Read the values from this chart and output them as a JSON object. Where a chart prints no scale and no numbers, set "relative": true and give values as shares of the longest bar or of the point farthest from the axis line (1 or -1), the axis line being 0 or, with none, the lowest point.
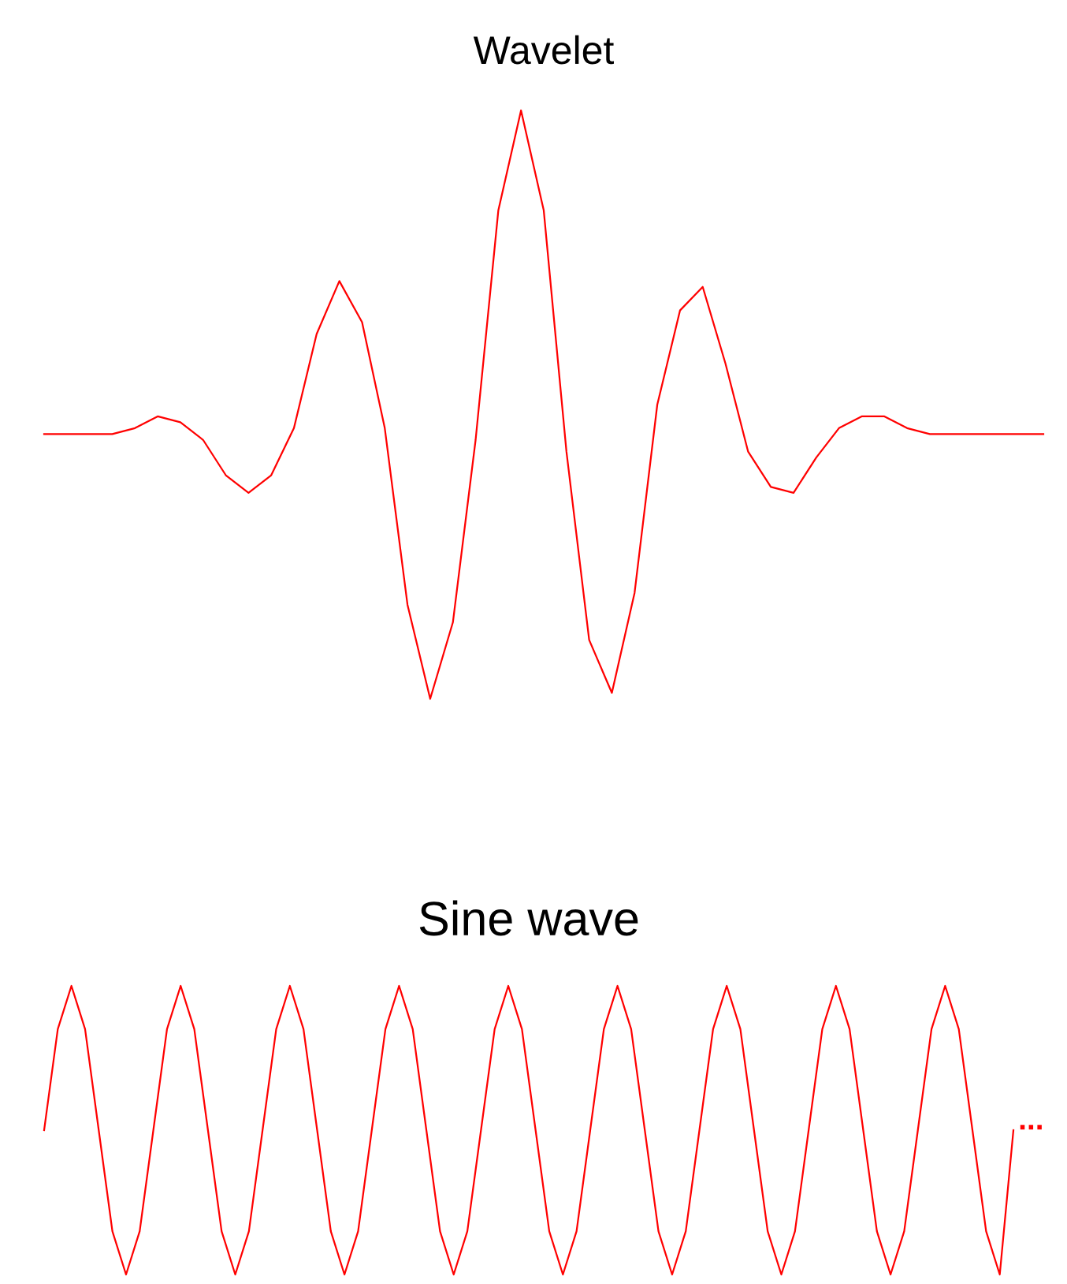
{
  "chart_data": [
    {
      "type": "line",
      "title": "Wavelet",
      "relative": true,
      "categories": [
        null,
        null,
        null,
        null,
        null,
        null,
        null,
        null,
        null,
        null,
        null,
        null,
        null,
        null,
        null,
        null,
        null,
        null,
        null,
        null,
        null,
        null,
        null,
        null,
        null,
        null,
        null,
        null,
        null,
        null,
        null,
        null,
        null,
        null,
        null,
        null,
        null,
        null,
        null,
        null,
        null,
        null,
        null,
        null,
        null
      ],
      "series": [
        {
          "color": "#ff0000",
          "values": [
            0.45,
            0.45,
            0.45,
            0.45,
            0.46,
            0.48,
            0.47,
            0.44,
            0.38,
            0.35,
            0.38,
            0.46,
            0.62,
            0.71,
            0.64,
            0.46,
            0.16,
            0,
            0.13,
            0.44,
            0.83,
            1,
            0.83,
            0.42,
            0.1,
            0.01,
            0.18,
            0.5,
            0.66,
            0.7,
            0.57,
            0.42,
            0.36,
            0.35,
            0.41,
            0.46,
            0.48,
            0.48,
            0.46,
            0.45,
            0.45,
            0.45,
            0.45,
            0.45,
            0.45
          ]
        }
      ]
    },
    {
      "type": "line",
      "title": "Sine wave",
      "relative": true,
      "annotations": [
        "..."
      ],
      "categories": [
        null,
        null,
        null,
        null,
        null,
        null,
        null,
        null,
        null,
        null,
        null,
        null,
        null,
        null,
        null,
        null,
        null,
        null,
        null,
        null,
        null,
        null,
        null,
        null,
        null,
        null,
        null,
        null,
        null,
        null,
        null,
        null,
        null,
        null,
        null,
        null,
        null,
        null,
        null,
        null,
        null,
        null,
        null,
        null,
        null,
        null,
        null,
        null,
        null,
        null,
        null,
        null,
        null,
        null,
        null,
        null,
        null,
        null,
        null,
        null,
        null,
        null,
        null,
        null,
        null,
        null,
        null,
        null,
        null,
        null,
        null,
        null
      ],
      "series": [
        {
          "color": "#ff0000",
          "values": [
            0.5,
            0.85,
            1,
            0.85,
            0.5,
            0.15,
            0,
            0.15,
            0.5,
            0.85,
            1,
            0.85,
            0.5,
            0.15,
            0,
            0.15,
            0.5,
            0.85,
            1,
            0.85,
            0.5,
            0.15,
            0,
            0.15,
            0.5,
            0.85,
            1,
            0.85,
            0.5,
            0.15,
            0,
            0.15,
            0.5,
            0.85,
            1,
            0.85,
            0.5,
            0.15,
            0,
            0.15,
            0.5,
            0.85,
            1,
            0.85,
            0.5,
            0.15,
            0,
            0.15,
            0.5,
            0.85,
            1,
            0.85,
            0.5,
            0.15,
            0,
            0.15,
            0.5,
            0.85,
            1,
            0.85,
            0.5,
            0.15,
            0,
            0.15,
            0.5,
            0.85,
            1,
            0.85,
            0.5,
            0.15,
            0,
            0.5
          ]
        }
      ]
    }
  ]
}
